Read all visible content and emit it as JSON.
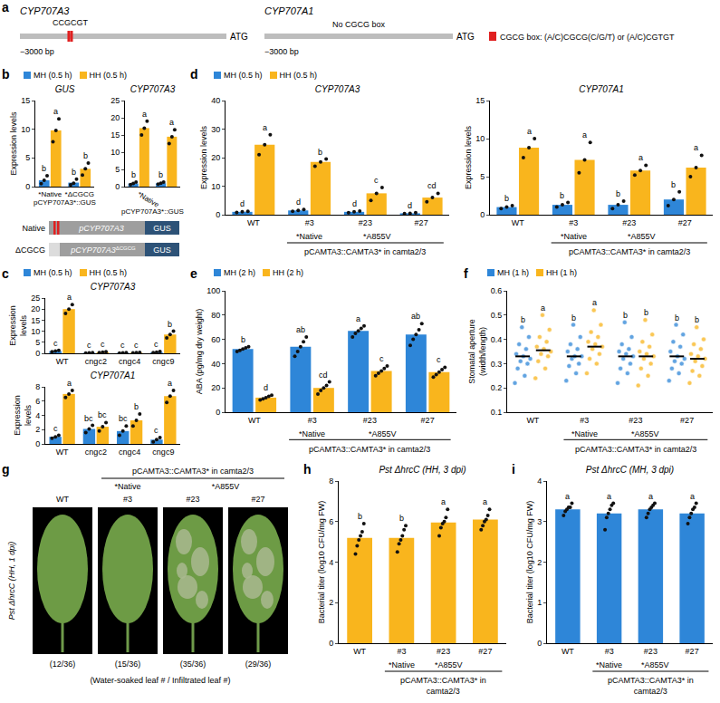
{
  "diagram_a": {
    "panel": "a",
    "genes": [
      {
        "name": "CYP707A3",
        "start_label": "−3000 bp",
        "span": -3000,
        "end_label": "ATG",
        "cgcg_boxes": {
          "text": "CCGCGT",
          "positions": [
            -2290,
            -2250
          ]
        }
      },
      {
        "name": "CYP707A1",
        "start_label": "−3000 bp",
        "span": -3000,
        "end_label": "ATG",
        "note": "No CGCG box"
      }
    ],
    "key": "CGCG box: (A/C)CGCG(C/G/T) or (A/C)CGTGT"
  },
  "schematic_b": {
    "rows": [
      {
        "label": "Native",
        "promoter": "pCYP707A3",
        "reporter": "GUS",
        "cgcg": true
      },
      {
        "label": "ΔCGCG",
        "promoter": "pCYP707A3",
        "superscript": "ΔCGCG",
        "reporter": "GUS",
        "cgcg": false
      }
    ]
  },
  "image_g": {
    "panel": "g",
    "title": "Pst ΔhrcC (HH, 1 dpi)",
    "group_title": "pCAMTA3::CAMTA3* in camta2/3",
    "groups": [
      {
        "label": "*Native",
        "members": [
          "#3"
        ]
      },
      {
        "label": "*A855V",
        "members": [
          "#23",
          "#27"
        ]
      }
    ],
    "categories": [
      "WT",
      "#3",
      "#23",
      "#27"
    ],
    "counts": [
      "(12/36)",
      "(15/36)",
      "(35/36)",
      "(29/36)"
    ],
    "caption": "(Water-soaked leaf # / Infiltrated leaf #)"
  },
  "chart_data": [
    {
      "panel": "b",
      "type": "bar",
      "title": "GUS",
      "y_label": "Expression levels",
      "x_title": "pCYP707A3*::GUS",
      "legend": "top",
      "categories": [
        "*Native",
        "*ΔCGCG"
      ],
      "ylim": [
        0,
        15
      ],
      "yticks": [
        0,
        5,
        10,
        15
      ],
      "series": [
        {
          "name": "MH (0.5 h)",
          "color": "#2e86d8",
          "values": [
            1.1,
            0.7
          ],
          "points": [
            [
              0.5,
              1.1,
              1.9
            ],
            [
              0.3,
              0.6,
              1.3
            ]
          ],
          "letters": [
            "b",
            "b"
          ]
        },
        {
          "name": "HH (0.5 h)",
          "color": "#f9b51d",
          "values": [
            9.8,
            3.1
          ],
          "points": [
            [
              7.8,
              9.8,
              11.8
            ],
            [
              2.0,
              3.1,
              4.1
            ]
          ],
          "letters": [
            "a",
            "b"
          ]
        }
      ]
    },
    {
      "panel": "b",
      "type": "bar",
      "title": "CYP707A3",
      "x_title": "pCYP707A3*::GUS",
      "categories": [
        "*Native",
        "*ΔCGCG"
      ],
      "ylim": [
        0,
        25
      ],
      "yticks": [
        0,
        5,
        10,
        15,
        20,
        25
      ],
      "series": [
        {
          "name": "MH (0.5 h)",
          "color": "#2e86d8",
          "values": [
            0.9,
            1.0
          ],
          "points": [
            [
              0.6,
              0.9,
              1.3
            ],
            [
              0.7,
              1.0,
              1.3
            ]
          ],
          "letters": [
            "b",
            "b"
          ]
        },
        {
          "name": "HH (0.5 h)",
          "color": "#f9b51d",
          "values": [
            17,
            14.5
          ],
          "points": [
            [
              15,
              17,
              19
            ],
            [
              12.5,
              14.5,
              16.5
            ]
          ],
          "letters": [
            "a",
            "a"
          ]
        }
      ]
    },
    {
      "panel": "c",
      "type": "bar",
      "title": "CYP707A3",
      "y_label": "Expression levels",
      "legend": "top",
      "categories": [
        "WT",
        "cngc2",
        "cngc4",
        "cngc9"
      ],
      "ylim": [
        0,
        25
      ],
      "yticks": [
        0,
        5,
        10,
        15,
        20,
        25
      ],
      "series": [
        {
          "name": "MH (0.5 h)",
          "color": "#2e86d8",
          "values": [
            1.0,
            0.2,
            0.2,
            0.5
          ],
          "points": [
            [
              0.7,
              1.0,
              1.3
            ],
            [
              0.1,
              0.2,
              0.3
            ],
            [
              0.1,
              0.2,
              0.3
            ],
            [
              0.3,
              0.5,
              0.8
            ]
          ],
          "letters": [
            "c",
            "c",
            "c",
            "c"
          ]
        },
        {
          "name": "HH (0.5 h)",
          "color": "#f9b51d",
          "values": [
            20,
            0.5,
            0.3,
            8.5
          ],
          "points": [
            [
              18,
              20,
              22
            ],
            [
              0.3,
              0.5,
              0.7
            ],
            [
              0.2,
              0.3,
              0.4
            ],
            [
              7,
              8.5,
              10
            ]
          ],
          "letters": [
            "a",
            "c",
            "c",
            "b"
          ]
        }
      ]
    },
    {
      "panel": "c",
      "type": "bar",
      "title": "CYP707A1",
      "y_label": "Expression levels",
      "categories": [
        "WT",
        "cngc2",
        "cngc4",
        "cngc9"
      ],
      "ylim": [
        0,
        8
      ],
      "yticks": [
        0,
        2,
        4,
        6,
        8
      ],
      "series": [
        {
          "name": "MH (0.5 h)",
          "color": "#2e86d8",
          "values": [
            1.0,
            2.1,
            1.8,
            0.6
          ],
          "points": [
            [
              0.8,
              1.0,
              1.2
            ],
            [
              1.6,
              2.1,
              2.6
            ],
            [
              1.2,
              1.8,
              2.5
            ],
            [
              0.3,
              0.6,
              0.9
            ]
          ],
          "letters": [
            "c",
            "bc",
            "bc",
            "c"
          ]
        },
        {
          "name": "HH (0.5 h)",
          "color": "#f9b51d",
          "values": [
            7.0,
            2.4,
            3.3,
            6.7
          ],
          "points": [
            [
              6.5,
              7.0,
              7.5
            ],
            [
              1.8,
              2.4,
              3.0
            ],
            [
              2.5,
              3.3,
              4.2
            ],
            [
              5.8,
              6.7,
              7.5
            ]
          ],
          "letters": [
            "a",
            "bc",
            "b",
            "a"
          ]
        }
      ]
    },
    {
      "panel": "d",
      "type": "bar",
      "title": "CYP707A3",
      "y_label": "Expression levels",
      "legend": "top",
      "categories": [
        "WT",
        "#3",
        "#23",
        "#27"
      ],
      "groups": [
        {
          "label": "*Native",
          "members": [
            "#3"
          ]
        },
        {
          "label": "*A855V",
          "members": [
            "#23",
            "#27"
          ]
        }
      ],
      "group_title": "pCAMTA3::CAMTA3* in camta2/3",
      "ylim": [
        0,
        40
      ],
      "yticks": [
        0,
        10,
        20,
        30,
        40
      ],
      "series": [
        {
          "name": "MH (0.5 h)",
          "color": "#2e86d8",
          "values": [
            1.0,
            1.5,
            1.0,
            0.5
          ],
          "points": [
            [
              0.8,
              1.0,
              1.2
            ],
            [
              1.2,
              1.5,
              1.8
            ],
            [
              0.7,
              1.0,
              1.3
            ],
            [
              0.4,
              0.5,
              0.7
            ]
          ],
          "letters": [
            "d",
            "d",
            "d",
            "d"
          ]
        },
        {
          "name": "HH (0.5 h)",
          "color": "#f9b51d",
          "values": [
            24.5,
            18.5,
            7.5,
            6.0
          ],
          "points": [
            [
              21,
              24.5,
              28
            ],
            [
              17,
              18.5,
              19.5
            ],
            [
              5,
              7.5,
              9.5
            ],
            [
              4.5,
              6,
              7.5
            ]
          ],
          "letters": [
            "a",
            "b",
            "c",
            "cd"
          ]
        }
      ]
    },
    {
      "panel": "d",
      "type": "bar",
      "title": "CYP707A1",
      "y_label": "Expression levels",
      "categories": [
        "WT",
        "#3",
        "#23",
        "#27"
      ],
      "groups": [
        {
          "label": "*Native",
          "members": [
            "#3"
          ]
        },
        {
          "label": "*A855V",
          "members": [
            "#23",
            "#27"
          ]
        }
      ],
      "group_title": "pCAMTA3::CAMTA3* in camta2/3",
      "ylim": [
        0,
        15
      ],
      "yticks": [
        0,
        5,
        10,
        15
      ],
      "series": [
        {
          "name": "MH (0.5 h)",
          "color": "#2e86d8",
          "values": [
            1.0,
            1.3,
            1.3,
            2.0
          ],
          "points": [
            [
              0.8,
              1.0,
              1.2
            ],
            [
              1.0,
              1.3,
              1.6
            ],
            [
              0.8,
              1.3,
              1.8
            ],
            [
              1.2,
              2.0,
              3.0
            ]
          ],
          "letters": [
            "b",
            "b",
            "b",
            "b"
          ]
        },
        {
          "name": "HH (0.5 h)",
          "color": "#f9b51d",
          "values": [
            8.8,
            7.2,
            5.8,
            6.2
          ],
          "points": [
            [
              7.5,
              8.8,
              10
            ],
            [
              5.5,
              7.2,
              9.5
            ],
            [
              5.2,
              5.8,
              6.5
            ],
            [
              5.0,
              6.2,
              7.8
            ]
          ],
          "letters": [
            "a",
            "a",
            "a",
            "a"
          ]
        }
      ]
    },
    {
      "panel": "e",
      "type": "bar",
      "y_label": "ABA (pg/mg dry weight)",
      "legend": "top",
      "categories": [
        "WT",
        "#3",
        "#23",
        "#27"
      ],
      "groups": [
        {
          "label": "*Native",
          "members": [
            "#3"
          ]
        },
        {
          "label": "*A855V",
          "members": [
            "#23",
            "#27"
          ]
        }
      ],
      "group_title": "pCAMTA3::CAMTA3* in camta2/3",
      "ylim": [
        0,
        100
      ],
      "yticks": [
        0,
        20,
        40,
        60,
        80,
        100
      ],
      "series": [
        {
          "name": "MH (2 h)",
          "color": "#2e86d8",
          "values": [
            52,
            54,
            67,
            64
          ],
          "points": [
            [
              50,
              51,
              52,
              53,
              54
            ],
            [
              46,
              50,
              54,
              58,
              62
            ],
            [
              62,
              65,
              67,
              69,
              71
            ],
            [
              55,
              60,
              64,
              68,
              73
            ]
          ],
          "letters": [
            "b",
            "ab",
            "a",
            "ab"
          ]
        },
        {
          "name": "HH (2 h)",
          "color": "#f9b51d",
          "values": [
            12,
            20,
            34,
            33
          ],
          "points": [
            [
              10,
              11,
              12,
              13,
              14
            ],
            [
              15,
              18,
              20,
              22,
              25
            ],
            [
              30,
              32,
              34,
              36,
              38
            ],
            [
              29,
              31,
              33,
              35,
              37
            ]
          ],
          "letters": [
            "d",
            "cd",
            "c",
            "c"
          ]
        }
      ]
    },
    {
      "panel": "f",
      "type": "strip",
      "y_label": "Stomatal aperture (width/length)",
      "legend": "top",
      "categories": [
        "WT",
        "#3",
        "#23",
        "#27"
      ],
      "groups": [
        {
          "label": "*Native",
          "members": [
            "#3"
          ]
        },
        {
          "label": "*A855V",
          "members": [
            "#23",
            "#27"
          ]
        }
      ],
      "group_title": "pCAMTA3::CAMTA3* in camta2/3",
      "ylim": [
        0.1,
        0.6
      ],
      "yticks": [
        0.1,
        0.2,
        0.3,
        0.4,
        0.5,
        0.6
      ],
      "series": [
        {
          "name": "MH (1 h)",
          "color": "#2e86d8",
          "values": [
            0.33,
            0.33,
            0.33,
            0.33
          ],
          "points": [
            [
              0.22,
              0.25,
              0.28,
              0.3,
              0.31,
              0.32,
              0.33,
              0.34,
              0.36,
              0.38,
              0.41,
              0.45
            ],
            [
              0.23,
              0.26,
              0.29,
              0.3,
              0.32,
              0.33,
              0.33,
              0.35,
              0.36,
              0.38,
              0.41,
              0.46
            ],
            [
              0.22,
              0.26,
              0.28,
              0.3,
              0.32,
              0.33,
              0.34,
              0.35,
              0.36,
              0.38,
              0.41,
              0.47
            ],
            [
              0.23,
              0.26,
              0.28,
              0.3,
              0.31,
              0.32,
              0.33,
              0.35,
              0.37,
              0.39,
              0.42,
              0.46
            ]
          ],
          "letters": [
            "b",
            "b",
            "b",
            "b"
          ]
        },
        {
          "name": "HH (1 h)",
          "color": "#f9b51d",
          "values": [
            0.355,
            0.37,
            0.33,
            0.32
          ],
          "points": [
            [
              0.24,
              0.28,
              0.31,
              0.33,
              0.34,
              0.35,
              0.36,
              0.37,
              0.39,
              0.41,
              0.44,
              0.5
            ],
            [
              0.26,
              0.3,
              0.32,
              0.34,
              0.36,
              0.37,
              0.38,
              0.39,
              0.41,
              0.43,
              0.46,
              0.52
            ],
            [
              0.21,
              0.25,
              0.28,
              0.3,
              0.32,
              0.33,
              0.34,
              0.35,
              0.37,
              0.39,
              0.42,
              0.48
            ],
            [
              0.22,
              0.25,
              0.27,
              0.29,
              0.31,
              0.32,
              0.33,
              0.34,
              0.36,
              0.38,
              0.4,
              0.45
            ]
          ],
          "letters": [
            "a",
            "a",
            "b",
            "b"
          ]
        }
      ]
    },
    {
      "panel": "h",
      "type": "bar",
      "title": "Pst ΔhrcC (HH, 3 dpi)",
      "y_label": "Bacterial titer (log10 CFU/mg FW)",
      "categories": [
        "WT",
        "#3",
        "#23",
        "#27"
      ],
      "groups": [
        {
          "label": "*Native",
          "members": [
            "#3"
          ]
        },
        {
          "label": "*A855V",
          "members": [
            "#23",
            "#27"
          ]
        }
      ],
      "group_title": "pCAMTA3::CAMTA3* in camta2/3",
      "ylim": [
        0,
        8
      ],
      "yticks": [
        0,
        2,
        4,
        6,
        8
      ],
      "color": "#f9b51d",
      "values": [
        5.2,
        5.2,
        5.95,
        6.1
      ],
      "points": [
        [
          4.4,
          4.8,
          5.1,
          5.3,
          5.5,
          5.9
        ],
        [
          4.5,
          4.9,
          5.1,
          5.3,
          5.6,
          5.8
        ],
        [
          5.3,
          5.7,
          5.9,
          6.0,
          6.2,
          6.6
        ],
        [
          5.6,
          5.8,
          6.0,
          6.1,
          6.3,
          6.6
        ]
      ],
      "letters": [
        "b",
        "b",
        "a",
        "a"
      ]
    },
    {
      "panel": "i",
      "type": "bar",
      "title": "Pst ΔhrcC (MH, 3 dpi)",
      "y_label": "Bacterial titer (log10 CFU/mg FW)",
      "categories": [
        "WT",
        "#3",
        "#23",
        "#27"
      ],
      "groups": [
        {
          "label": "*Native",
          "members": [
            "#3"
          ]
        },
        {
          "label": "*A855V",
          "members": [
            "#23",
            "#27"
          ]
        }
      ],
      "group_title": "pCAMTA3::CAMTA3* in camta2/3",
      "ylim": [
        0,
        4
      ],
      "yticks": [
        0,
        1,
        2,
        3,
        4
      ],
      "color": "#2e86d8",
      "values": [
        3.3,
        3.2,
        3.3,
        3.2
      ],
      "points": [
        [
          3.15,
          3.25,
          3.3,
          3.35,
          3.35,
          3.45
        ],
        [
          2.8,
          3.1,
          3.2,
          3.3,
          3.4,
          3.45
        ],
        [
          3.1,
          3.2,
          3.3,
          3.35,
          3.4,
          3.45
        ],
        [
          2.95,
          3.1,
          3.2,
          3.3,
          3.35,
          3.45
        ]
      ],
      "letters": [
        "a",
        "a",
        "a",
        "a"
      ]
    }
  ]
}
